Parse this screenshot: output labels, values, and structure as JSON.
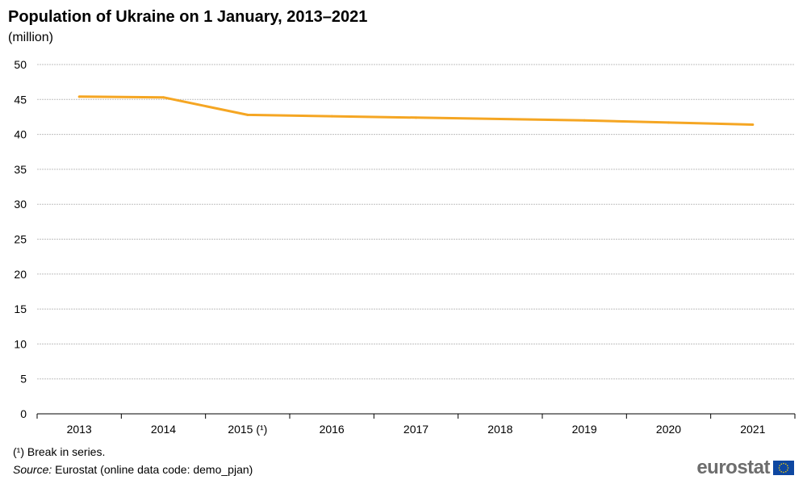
{
  "title": "Population of Ukraine on 1 January, 2013–2021",
  "subtitle": "(million)",
  "footnote": "(¹) Break in series.",
  "source_label": "Source:",
  "source_text": " Eurostat (online data code: demo_pjan)",
  "logo": {
    "text": "eurostat",
    "flag_icon": "eu-flag-icon"
  },
  "colors": {
    "line": "#f5a623",
    "grid": "#bfbfbf",
    "axis": "#000000",
    "logo_text": "#6d6d6d",
    "flag_bg": "#0e47a1",
    "flag_stars": "#ffd400"
  },
  "chart_data": {
    "type": "line",
    "title": "Population of Ukraine on 1 January, 2013–2021",
    "subtitle": "(million)",
    "categories": [
      "2013",
      "2014",
      "2015 (¹)",
      "2016",
      "2017",
      "2018",
      "2019",
      "2020",
      "2021"
    ],
    "series": [
      {
        "values": [
          45.4,
          45.3,
          42.8,
          42.6,
          42.4,
          42.2,
          42.0,
          41.7,
          41.4
        ]
      }
    ],
    "ylim": [
      0,
      50
    ],
    "yticks": [
      0,
      5,
      10,
      15,
      20,
      25,
      30,
      35,
      40,
      45,
      50
    ],
    "grid": true,
    "legend": "none"
  }
}
